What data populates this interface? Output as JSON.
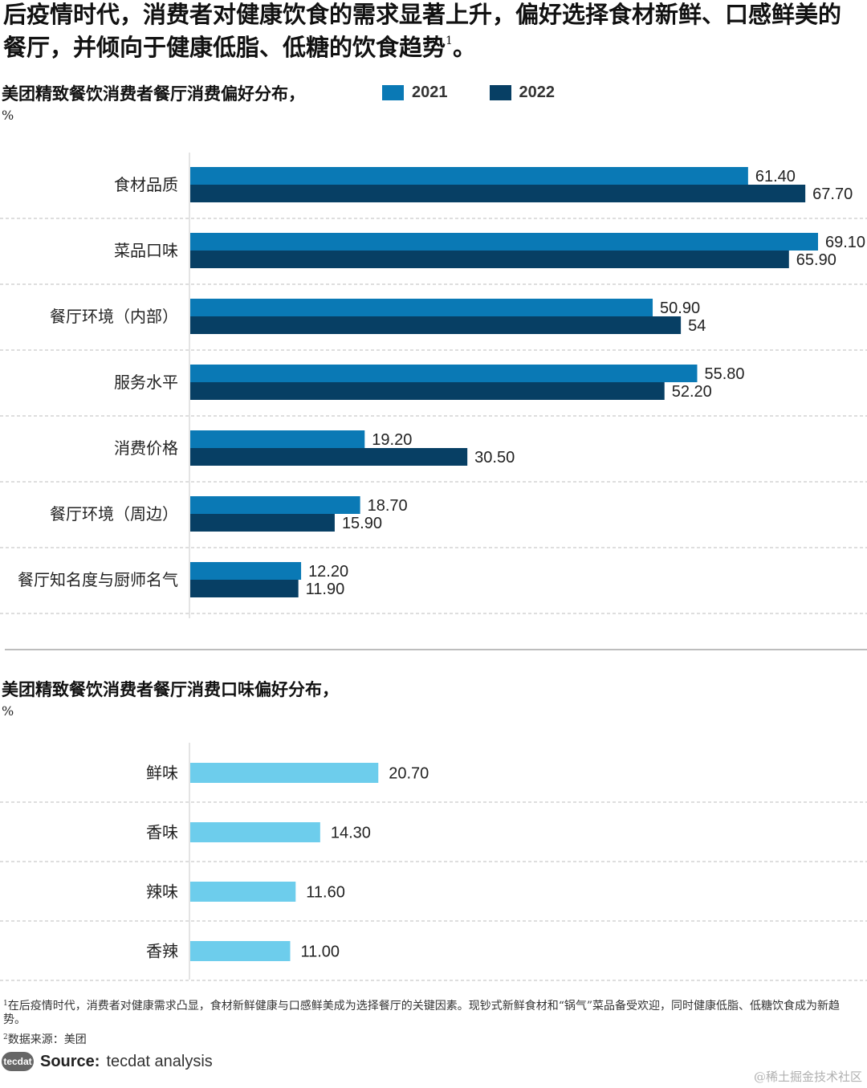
{
  "headline": {
    "text": "后疫情时代，消费者对健康饮食的需求显著上升，偏好选择食材新鲜、口感鲜美的餐厅，并倾向于健康低脂、低糖的饮食趋势",
    "sup": "1",
    "end": "。"
  },
  "legend": {
    "items": [
      {
        "label": "2021",
        "color": "#0a79b5"
      },
      {
        "label": "2022",
        "color": "#073f64"
      }
    ]
  },
  "chart_data": [
    {
      "type": "bar",
      "orientation": "horizontal",
      "title": "美团精致餐饮消费者餐厅消费偏好分布，",
      "unit": "%",
      "categories": [
        "食材品质",
        "菜品口味",
        "餐厅环境（内部）",
        "服务水平",
        "消费价格",
        "餐厅环境（周边）",
        "餐厅知名度与厨师名气"
      ],
      "series": [
        {
          "name": "2021",
          "color": "#0a79b5",
          "values": [
            61.4,
            69.1,
            50.9,
            55.8,
            19.2,
            18.7,
            12.2
          ],
          "labels": [
            "61.40",
            "69.10",
            "50.90",
            "55.80",
            "19.20",
            "18.70",
            "12.20"
          ]
        },
        {
          "name": "2022",
          "color": "#073f64",
          "values": [
            67.7,
            65.9,
            54,
            52.2,
            30.5,
            15.9,
            11.9
          ],
          "labels": [
            "67.70",
            "65.90",
            "54",
            "52.20",
            "30.50",
            "15.90",
            "11.90"
          ]
        }
      ],
      "xlim": [
        0,
        69.1
      ],
      "grid": "horizontal dashed separators",
      "legend_position": "top"
    },
    {
      "type": "bar",
      "orientation": "horizontal",
      "title": "美团精致餐饮消费者餐厅消费口味偏好分布，",
      "unit": "%",
      "categories": [
        "鲜味",
        "香味",
        "辣味",
        "香辣"
      ],
      "series": [
        {
          "color": "#6dcdec",
          "values": [
            20.7,
            14.3,
            11.6,
            11.0
          ],
          "labels": [
            "20.70",
            "14.30",
            "11.60",
            "11.00"
          ]
        }
      ],
      "xlim": [
        0,
        69.1
      ],
      "grid": "horizontal dashed separators"
    }
  ],
  "footnotes": [
    {
      "sup": "1",
      "text": "在后疫情时代，消费者对健康需求凸显，食材新鲜健康与口感鲜美成为选择餐厅的关键因素。现钞式新鲜食材和“锅气”菜品备受欢迎，同时健康低脂、低糖饮食成为新趋势。"
    },
    {
      "sup": "2",
      "text": "数据来源：美团"
    }
  ],
  "source": {
    "logo": "tecdat",
    "label": "Source:",
    "text": "tecdat analysis"
  },
  "watermark": "@稀土掘金技术社区"
}
